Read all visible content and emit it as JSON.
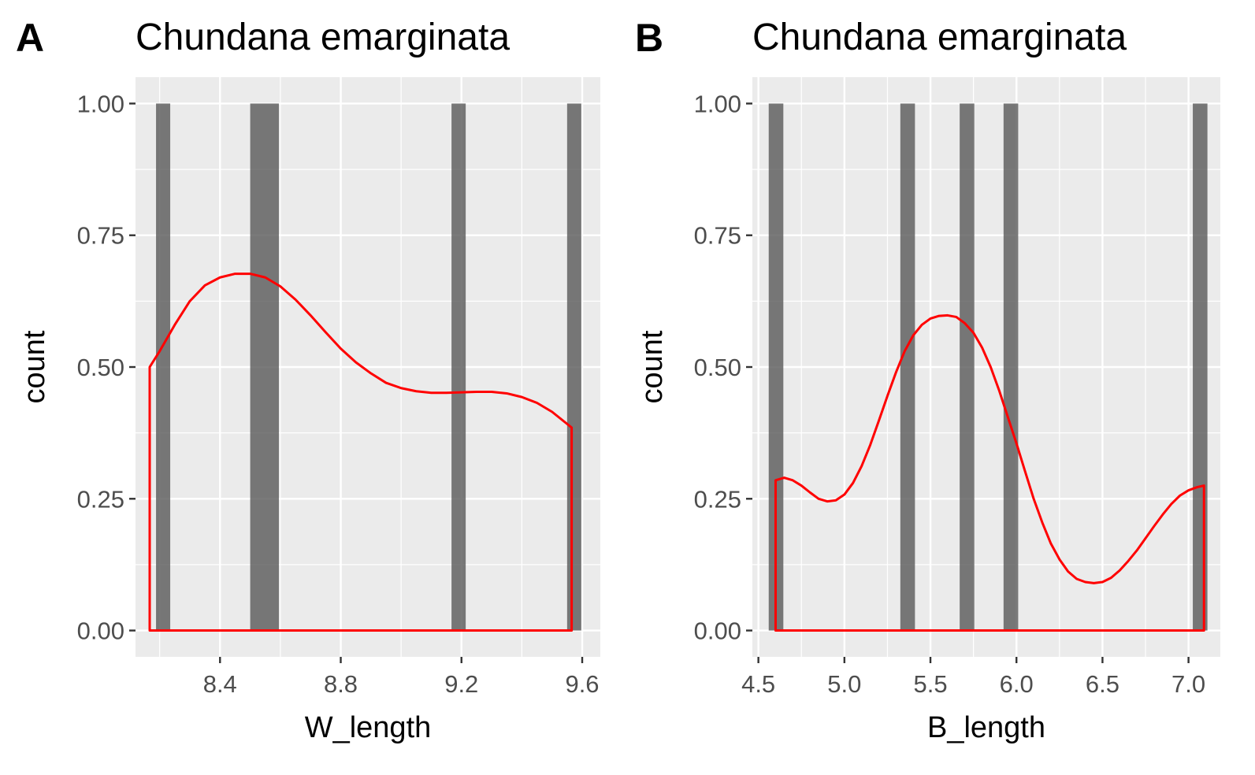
{
  "chart_data": [
    {
      "type": "bar",
      "tag": "A",
      "title": "Chundana emarginata",
      "xlabel": "W_length",
      "ylabel": "count",
      "xlim": [
        8.12,
        9.66
      ],
      "ylim": [
        -0.05,
        1.05
      ],
      "x_ticks": [
        8.4,
        8.8,
        9.2,
        9.6
      ],
      "x_tick_labels": [
        "8.4",
        "8.8",
        "9.2",
        "9.6"
      ],
      "y_ticks": [
        0,
        0.25,
        0.5,
        0.75,
        1
      ],
      "y_tick_labels": [
        "0.00",
        "0.25",
        "0.50",
        "0.75",
        "1.00"
      ],
      "bars": [
        {
          "x0": 8.188,
          "x1": 8.235,
          "count": 1
        },
        {
          "x0": 8.5,
          "x1": 8.595,
          "count": 1
        },
        {
          "x0": 9.167,
          "x1": 9.214,
          "count": 1
        },
        {
          "x0": 9.55,
          "x1": 9.597,
          "count": 1
        }
      ],
      "density": {
        "x": [
          8.167,
          8.2,
          8.25,
          8.3,
          8.35,
          8.4,
          8.45,
          8.5,
          8.55,
          8.6,
          8.65,
          8.7,
          8.75,
          8.8,
          8.85,
          8.9,
          8.95,
          9.0,
          9.05,
          9.1,
          9.15,
          9.2,
          9.25,
          9.3,
          9.35,
          9.4,
          9.45,
          9.5,
          9.55,
          9.565
        ],
        "y": [
          0.5,
          0.53,
          0.58,
          0.625,
          0.655,
          0.67,
          0.677,
          0.677,
          0.67,
          0.653,
          0.628,
          0.598,
          0.566,
          0.535,
          0.509,
          0.488,
          0.47,
          0.46,
          0.454,
          0.451,
          0.451,
          0.452,
          0.453,
          0.453,
          0.45,
          0.443,
          0.432,
          0.415,
          0.392,
          0.385
        ]
      },
      "grid": true
    },
    {
      "type": "bar",
      "tag": "B",
      "title": "Chundana emarginata",
      "xlabel": "B_length",
      "ylabel": "count",
      "xlim": [
        4.465,
        7.185
      ],
      "ylim": [
        -0.05,
        1.05
      ],
      "x_ticks": [
        4.5,
        5.0,
        5.5,
        6.0,
        6.5,
        7.0
      ],
      "x_tick_labels": [
        "4.5",
        "5.0",
        "5.5",
        "6.0",
        "6.5",
        "7.0"
      ],
      "y_ticks": [
        0,
        0.25,
        0.5,
        0.75,
        1
      ],
      "y_tick_labels": [
        "0.00",
        "0.25",
        "0.50",
        "0.75",
        "1.00"
      ],
      "bars": [
        {
          "x0": 4.56,
          "x1": 4.645,
          "count": 1
        },
        {
          "x0": 5.325,
          "x1": 5.41,
          "count": 1
        },
        {
          "x0": 5.67,
          "x1": 5.755,
          "count": 1
        },
        {
          "x0": 5.925,
          "x1": 6.01,
          "count": 1
        },
        {
          "x0": 7.025,
          "x1": 7.11,
          "count": 1
        }
      ],
      "density": {
        "x": [
          4.6,
          4.65,
          4.7,
          4.75,
          4.8,
          4.85,
          4.9,
          4.95,
          5.0,
          5.05,
          5.1,
          5.15,
          5.2,
          5.25,
          5.3,
          5.35,
          5.4,
          5.45,
          5.5,
          5.55,
          5.6,
          5.65,
          5.7,
          5.75,
          5.8,
          5.85,
          5.9,
          5.95,
          6.0,
          6.05,
          6.1,
          6.15,
          6.2,
          6.25,
          6.3,
          6.35,
          6.4,
          6.45,
          6.5,
          6.55,
          6.6,
          6.65,
          6.7,
          6.75,
          6.8,
          6.85,
          6.9,
          6.95,
          7.0,
          7.05,
          7.09
        ],
        "y": [
          0.285,
          0.29,
          0.285,
          0.275,
          0.262,
          0.25,
          0.245,
          0.247,
          0.258,
          0.28,
          0.312,
          0.352,
          0.398,
          0.445,
          0.49,
          0.53,
          0.56,
          0.58,
          0.592,
          0.597,
          0.598,
          0.595,
          0.583,
          0.565,
          0.537,
          0.5,
          0.455,
          0.405,
          0.355,
          0.302,
          0.25,
          0.205,
          0.165,
          0.135,
          0.112,
          0.098,
          0.092,
          0.09,
          0.092,
          0.1,
          0.114,
          0.132,
          0.152,
          0.175,
          0.198,
          0.22,
          0.24,
          0.256,
          0.266,
          0.272,
          0.275
        ]
      },
      "grid": true
    }
  ]
}
